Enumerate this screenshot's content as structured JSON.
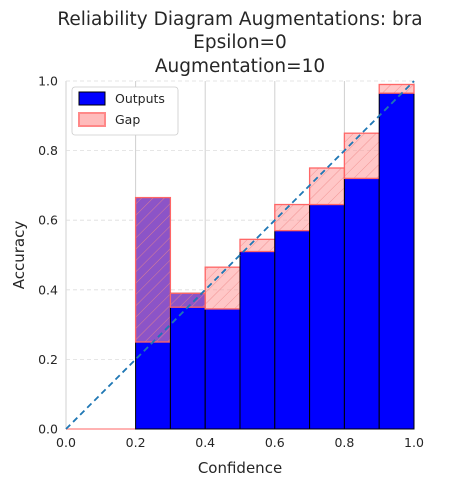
{
  "chart_data": {
    "type": "bar",
    "title_lines": [
      "Reliability Diagram Augmentations: bra",
      "Epsilon=0",
      "Augmentation=10"
    ],
    "xlabel": "Confidence",
    "ylabel": "Accuracy",
    "xlim": [
      0.0,
      1.0
    ],
    "ylim": [
      0.0,
      1.0
    ],
    "xticks": [
      "0.0",
      "0.2",
      "0.4",
      "0.6",
      "0.8",
      "1.0"
    ],
    "yticks": [
      "0.0",
      "0.2",
      "0.4",
      "0.6",
      "0.8",
      "1.0"
    ],
    "grid": true,
    "legend_position": "top-left",
    "bins": [
      {
        "lo": 0.2,
        "hi": 0.3,
        "accuracy": 0.665,
        "expected": 0.25
      },
      {
        "lo": 0.3,
        "hi": 0.4,
        "accuracy": 0.39,
        "expected": 0.35
      },
      {
        "lo": 0.4,
        "hi": 0.5,
        "accuracy": 0.345,
        "expected": 0.465
      },
      {
        "lo": 0.5,
        "hi": 0.6,
        "accuracy": 0.51,
        "expected": 0.545
      },
      {
        "lo": 0.6,
        "hi": 0.7,
        "accuracy": 0.57,
        "expected": 0.645
      },
      {
        "lo": 0.7,
        "hi": 0.8,
        "accuracy": 0.645,
        "expected": 0.75
      },
      {
        "lo": 0.8,
        "hi": 0.9,
        "accuracy": 0.72,
        "expected": 0.85
      },
      {
        "lo": 0.9,
        "hi": 1.0,
        "accuracy": 0.965,
        "expected": 0.99
      }
    ],
    "series": [
      {
        "name": "Outputs",
        "color": "#0000ff"
      },
      {
        "name": "Gap",
        "color": "#ff9999"
      }
    ],
    "diagonal_color": "#1f77b4"
  }
}
